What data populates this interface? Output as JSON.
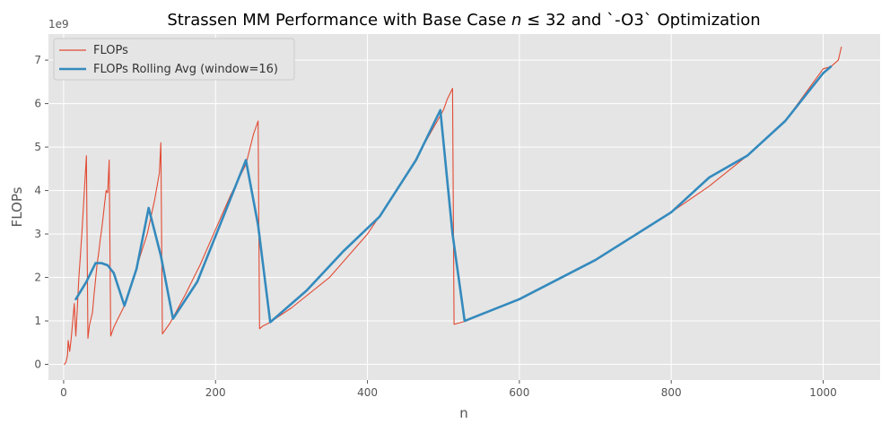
{
  "chart_data": {
    "type": "line",
    "title": "Strassen MM Performance with Base Case n ≤ 32 and `-O3` Optimization",
    "title_parts": {
      "prefix": "Strassen MM Performance with Base Case ",
      "var": "n",
      "rel": " ≤ 32 and `-O3` Optimization"
    },
    "xlabel": "n",
    "ylabel": "FLOPs",
    "y_offset_label": "1e9",
    "xlim": [
      -20,
      1075
    ],
    "ylim": [
      -0.36,
      7.6
    ],
    "x_ticks": [
      0,
      200,
      400,
      600,
      800,
      1000
    ],
    "x_tick_labels": [
      "0",
      "200",
      "400",
      "600",
      "800",
      "1000"
    ],
    "y_ticks": [
      0,
      1,
      2,
      3,
      4,
      5,
      6,
      7
    ],
    "y_tick_labels": [
      "0",
      "1",
      "2",
      "3",
      "4",
      "5",
      "6",
      "7"
    ],
    "grid": true,
    "legend_position": "top-left",
    "colors": {
      "background": "#e5e5e5",
      "grid": "#ffffff",
      "flops": "#e24a33",
      "rolling": "#348abd",
      "text": "#555555"
    },
    "series": [
      {
        "name": "FLOPs",
        "color": "#e24a33",
        "x": [
          1,
          3,
          5,
          6,
          8,
          10,
          12,
          14,
          16,
          18,
          20,
          22,
          24,
          26,
          28,
          30,
          32,
          34,
          36,
          38,
          40,
          42,
          44,
          46,
          48,
          50,
          52,
          54,
          56,
          58,
          60,
          62,
          64,
          66,
          70,
          80,
          90,
          100,
          110,
          120,
          126,
          128,
          130,
          140,
          160,
          180,
          200,
          220,
          240,
          250,
          256,
          258,
          262,
          270,
          300,
          350,
          400,
          450,
          500,
          505,
          512,
          514,
          520,
          530,
          600,
          700,
          800,
          850,
          900,
          950,
          1000,
          1010,
          1020,
          1024
        ],
        "y": [
          0.0,
          0.05,
          0.2,
          0.55,
          0.3,
          0.6,
          1.0,
          1.4,
          0.65,
          1.3,
          2.0,
          2.5,
          3.0,
          3.6,
          4.2,
          4.8,
          0.6,
          0.9,
          1.05,
          1.2,
          1.6,
          1.95,
          2.3,
          2.55,
          2.85,
          3.1,
          3.4,
          3.7,
          4.0,
          3.95,
          4.7,
          0.65,
          0.75,
          0.85,
          1.0,
          1.35,
          1.9,
          2.45,
          3.0,
          3.8,
          4.4,
          5.1,
          0.7,
          0.95,
          1.6,
          2.3,
          3.1,
          3.9,
          4.6,
          5.3,
          5.6,
          0.82,
          0.88,
          0.95,
          1.3,
          2.0,
          3.0,
          4.3,
          5.85,
          6.1,
          6.35,
          0.92,
          0.95,
          1.0,
          1.5,
          2.4,
          3.5,
          4.1,
          4.8,
          5.6,
          6.8,
          6.85,
          7.0,
          7.3
        ]
      },
      {
        "name": "FLOPs Rolling Avg (window=16)",
        "color": "#348abd",
        "x": [
          16,
          30,
          42,
          50,
          58,
          66,
          80,
          96,
          112,
          128,
          144,
          176,
          208,
          240,
          256,
          272,
          320,
          368,
          416,
          464,
          496,
          512,
          528,
          600,
          700,
          800,
          850,
          900,
          950,
          1000,
          1010
        ],
        "y": [
          1.5,
          1.9,
          2.33,
          2.33,
          2.28,
          2.1,
          1.35,
          2.2,
          3.6,
          2.5,
          1.05,
          1.9,
          3.3,
          4.7,
          3.2,
          0.97,
          1.7,
          2.6,
          3.4,
          4.7,
          5.85,
          3.0,
          1.0,
          1.5,
          2.4,
          3.5,
          4.3,
          4.8,
          5.6,
          6.7,
          6.85
        ]
      }
    ]
  }
}
